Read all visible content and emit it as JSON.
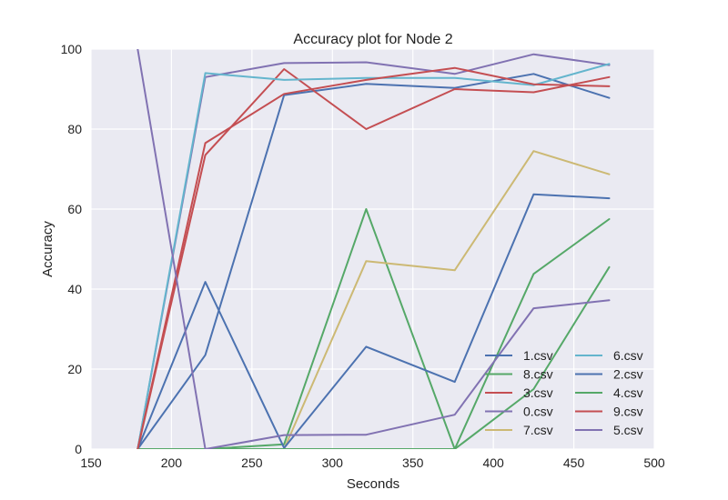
{
  "chart_data": {
    "type": "line",
    "title": "Accuracy plot for Node 2",
    "xlabel": "Seconds",
    "ylabel": "Accuracy",
    "xlim": [
      150,
      500
    ],
    "ylim": [
      0,
      100
    ],
    "xticks": [
      150,
      200,
      250,
      300,
      350,
      400,
      450,
      500
    ],
    "yticks": [
      0,
      20,
      40,
      60,
      80,
      100
    ],
    "grid": true,
    "legend": {
      "placement": "lower-right",
      "columns": 2
    },
    "x": [
      179,
      221,
      270,
      321,
      376,
      425,
      472
    ],
    "series": [
      {
        "name": "1.csv",
        "color": "#4c72b0",
        "values": [
          0,
          23.5,
          88.5,
          91.3,
          90.3,
          93.8,
          87.8
        ]
      },
      {
        "name": "8.csv",
        "color": "#55a868",
        "values": [
          0,
          0,
          1.2,
          60,
          0,
          43.8,
          57.5
        ]
      },
      {
        "name": "3.csv",
        "color": "#c44e52",
        "values": [
          0,
          73.5,
          95,
          80,
          90,
          89.2,
          93
        ]
      },
      {
        "name": "0.csv",
        "color": "#8172b2",
        "values": [
          0,
          93,
          96.5,
          96.7,
          93.8,
          98.7,
          96
        ]
      },
      {
        "name": "7.csv",
        "color": "#ccb974",
        "values": [
          0,
          0,
          0,
          47,
          44.7,
          74.5,
          68.7
        ]
      },
      {
        "name": "6.csv",
        "color": "#64b5cd",
        "values": [
          0,
          94,
          92.3,
          92.8,
          92.8,
          91,
          96.3
        ]
      },
      {
        "name": "2.csv",
        "color": "#4c72b0",
        "values": [
          0,
          41.8,
          0.3,
          25.6,
          16.8,
          63.7,
          62.7
        ]
      },
      {
        "name": "4.csv",
        "color": "#55a868",
        "values": [
          0,
          0,
          0,
          0,
          0,
          15,
          45.5
        ]
      },
      {
        "name": "9.csv",
        "color": "#c44e52",
        "values": [
          0,
          76.5,
          88.8,
          92.3,
          95.3,
          91.2,
          90.7
        ]
      },
      {
        "name": "5.csv",
        "color": "#8172b2",
        "values": [
          100,
          0,
          3.5,
          3.6,
          8.6,
          35.2,
          37.2
        ]
      }
    ]
  }
}
